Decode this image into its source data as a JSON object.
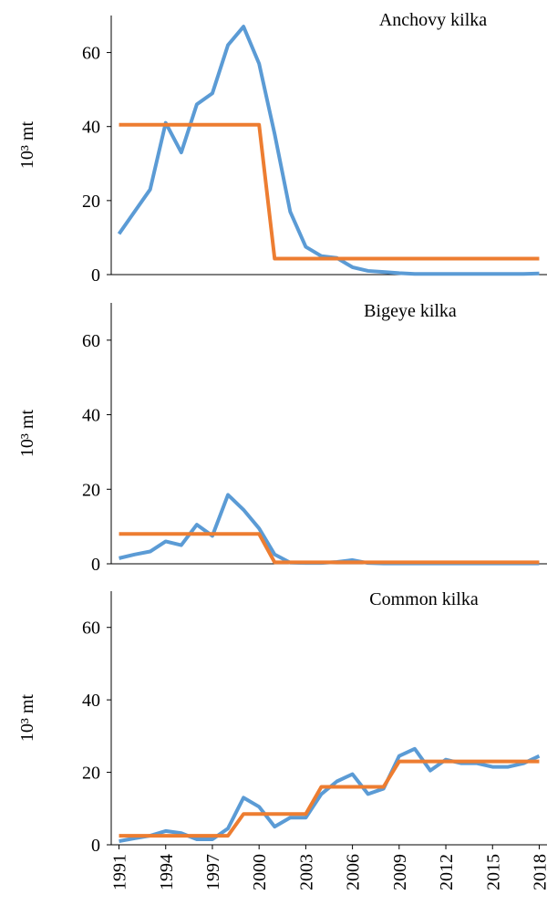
{
  "chart_data": [
    {
      "type": "line",
      "title": "Anchovy kilka",
      "ylabel": "10³ mt",
      "x": [
        1991,
        1992,
        1993,
        1994,
        1995,
        1996,
        1997,
        1998,
        1999,
        2000,
        2001,
        2002,
        2003,
        2004,
        2005,
        2006,
        2007,
        2008,
        2009,
        2010,
        2011,
        2012,
        2013,
        2014,
        2015,
        2016,
        2017,
        2018
      ],
      "xlim": [
        1990.5,
        2018.5
      ],
      "ylim": [
        0,
        70
      ],
      "yticks": [
        0,
        20,
        40,
        60
      ],
      "series": [
        {
          "color": "#5b9bd5",
          "values": [
            11,
            17,
            23,
            41,
            33,
            46,
            49,
            62,
            67,
            57,
            38,
            17,
            7.5,
            5,
            4.5,
            2,
            1,
            0.7,
            0.4,
            0.2,
            0.2,
            0.2,
            0.2,
            0.2,
            0.2,
            0.2,
            0.2,
            0.3
          ]
        },
        {
          "color": "#ed7d31",
          "values": [
            40.5,
            40.5,
            40.5,
            40.5,
            40.5,
            40.5,
            40.5,
            40.5,
            40.5,
            40.5,
            4.3,
            4.3,
            4.3,
            4.3,
            4.3,
            4.3,
            4.3,
            4.3,
            4.3,
            4.3,
            4.3,
            4.3,
            4.3,
            4.3,
            4.3,
            4.3,
            4.3,
            4.3
          ]
        }
      ]
    },
    {
      "type": "line",
      "title": "Bigeye kilka",
      "ylabel": "10³ mt",
      "x": [
        1991,
        1992,
        1993,
        1994,
        1995,
        1996,
        1997,
        1998,
        1999,
        2000,
        2001,
        2002,
        2003,
        2004,
        2005,
        2006,
        2007,
        2008,
        2009,
        2010,
        2011,
        2012,
        2013,
        2014,
        2015,
        2016,
        2017,
        2018
      ],
      "xlim": [
        1990.5,
        2018.5
      ],
      "ylim": [
        0,
        70
      ],
      "yticks": [
        0,
        20,
        40,
        60
      ],
      "series": [
        {
          "color": "#5b9bd5",
          "values": [
            1.5,
            2.5,
            3.3,
            6,
            5,
            10.5,
            7.5,
            18.5,
            14.5,
            9.5,
            2.5,
            0.3,
            0.2,
            0.2,
            0.5,
            1,
            0.2,
            0.1,
            0.1,
            0.1,
            0.1,
            0.1,
            0.1,
            0.1,
            0.1,
            0.1,
            0.1,
            0.1
          ]
        },
        {
          "color": "#ed7d31",
          "values": [
            8,
            8,
            8,
            8,
            8,
            8,
            8,
            8,
            8,
            8,
            0.4,
            0.4,
            0.4,
            0.4,
            0.4,
            0.4,
            0.4,
            0.4,
            0.4,
            0.4,
            0.4,
            0.4,
            0.4,
            0.4,
            0.4,
            0.4,
            0.4,
            0.4
          ]
        }
      ]
    },
    {
      "type": "line",
      "title": "Common kilka",
      "ylabel": "10³ mt",
      "x": [
        1991,
        1992,
        1993,
        1994,
        1995,
        1996,
        1997,
        1998,
        1999,
        2000,
        2001,
        2002,
        2003,
        2004,
        2005,
        2006,
        2007,
        2008,
        2009,
        2010,
        2011,
        2012,
        2013,
        2014,
        2015,
        2016,
        2017,
        2018
      ],
      "xlim": [
        1990.5,
        2018.5
      ],
      "ylim": [
        0,
        70
      ],
      "yticks": [
        0,
        20,
        40,
        60
      ],
      "xticks": [
        1991,
        1994,
        1997,
        2000,
        2003,
        2006,
        2009,
        2012,
        2015,
        2018
      ],
      "series": [
        {
          "color": "#5b9bd5",
          "values": [
            1,
            1.8,
            2.5,
            3.8,
            3.2,
            1.5,
            1.5,
            4.5,
            13,
            10.5,
            5,
            7.5,
            7.5,
            14,
            17.5,
            19.5,
            14,
            15.5,
            24.5,
            26.5,
            20.5,
            23.5,
            22.5,
            22.5,
            21.5,
            21.5,
            22.5,
            24.5
          ]
        },
        {
          "color": "#ed7d31",
          "values": [
            2.5,
            2.5,
            2.5,
            2.5,
            2.5,
            2.5,
            2.5,
            2.5,
            8.5,
            8.5,
            8.5,
            8.5,
            8.5,
            16,
            16,
            16,
            16,
            16,
            23,
            23,
            23,
            23,
            23,
            23,
            23,
            23,
            23,
            23
          ]
        }
      ]
    }
  ]
}
